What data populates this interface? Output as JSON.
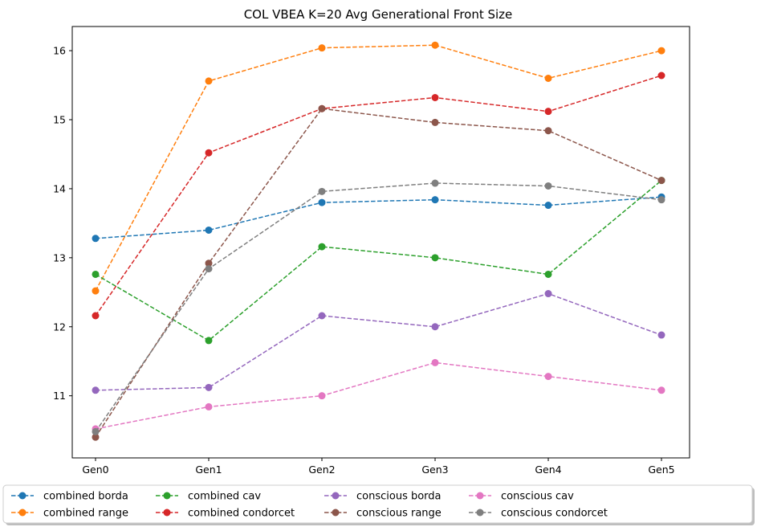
{
  "chart_data": {
    "type": "line",
    "title": "COL VBEA K=20 Avg Generational Front Size",
    "xlabel": "",
    "ylabel": "",
    "categories": [
      "Gen0",
      "Gen1",
      "Gen2",
      "Gen3",
      "Gen4",
      "Gen5"
    ],
    "ylim": [
      10.1,
      16.35
    ],
    "yticks": [
      11,
      12,
      13,
      14,
      15,
      16
    ],
    "grid": false,
    "line_style": "dashed",
    "marker": "circle",
    "legend_position": "bottom",
    "series": [
      {
        "name": "combined borda",
        "color": "#1f77b4",
        "values": [
          13.28,
          13.4,
          13.8,
          13.84,
          13.76,
          13.88
        ]
      },
      {
        "name": "combined range",
        "color": "#ff7f0e",
        "values": [
          12.52,
          15.56,
          16.04,
          16.08,
          15.6,
          16.0
        ]
      },
      {
        "name": "combined cav",
        "color": "#2ca02c",
        "values": [
          12.76,
          11.8,
          13.16,
          13.0,
          12.76,
          14.12
        ]
      },
      {
        "name": "combined condorcet",
        "color": "#d62728",
        "values": [
          12.16,
          14.52,
          15.16,
          15.32,
          15.12,
          15.64
        ]
      },
      {
        "name": "conscious borda",
        "color": "#9467bd",
        "values": [
          11.08,
          11.12,
          12.16,
          12.0,
          12.48,
          11.88
        ]
      },
      {
        "name": "conscious range",
        "color": "#8c564b",
        "values": [
          10.4,
          12.92,
          15.16,
          14.96,
          14.84,
          14.12
        ]
      },
      {
        "name": "conscious cav",
        "color": "#e377c2",
        "values": [
          10.52,
          10.84,
          11.0,
          11.48,
          11.28,
          11.08
        ]
      },
      {
        "name": "conscious condorcet",
        "color": "#7f7f7f",
        "values": [
          10.48,
          12.84,
          13.96,
          14.08,
          14.04,
          13.84
        ]
      }
    ]
  }
}
